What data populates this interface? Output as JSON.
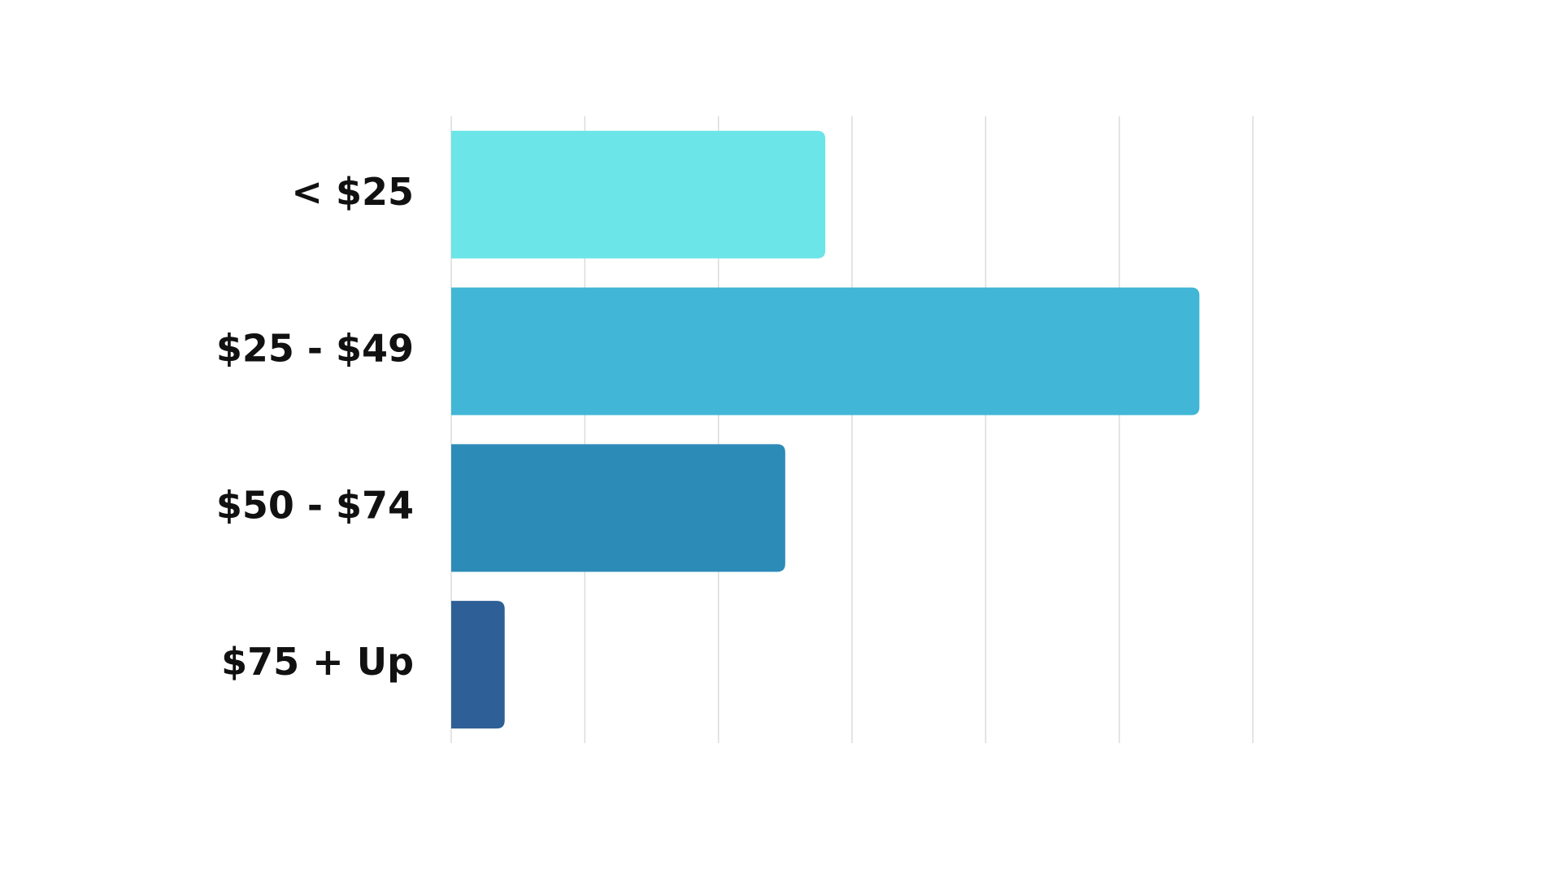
{
  "chart_data": {
    "type": "bar",
    "orientation": "horizontal",
    "categories": [
      "< $25",
      "$25 - $49",
      "$50 - $74",
      "$75 + Up"
    ],
    "values": [
      2.8,
      5.6,
      2.5,
      0.4
    ],
    "colors": [
      "#6ce5e8",
      "#41b6d6",
      "#2d8bb8",
      "#2e5f96"
    ],
    "xlim": [
      0,
      6
    ],
    "xticks": [
      0,
      1,
      2,
      3,
      4,
      5,
      6
    ],
    "grid": true
  }
}
